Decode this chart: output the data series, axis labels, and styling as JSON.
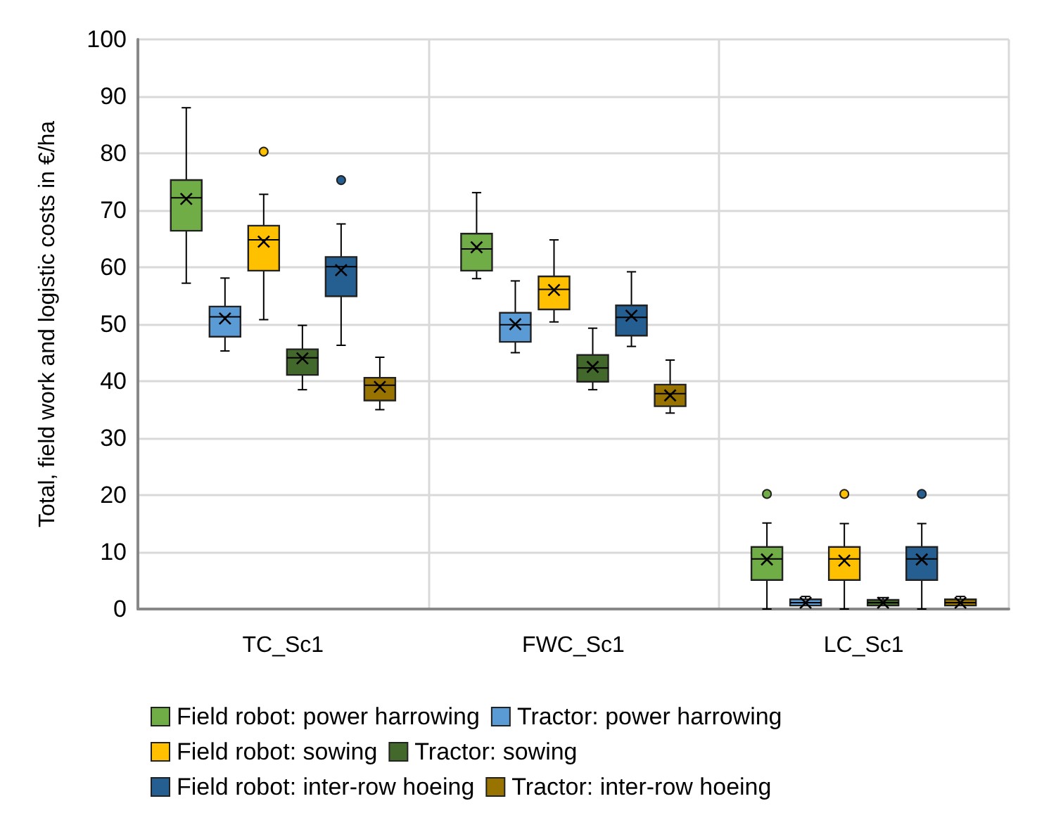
{
  "chart_data": {
    "type": "box",
    "ylabel": "Total, field work and logistic costs in €/ha",
    "categories": [
      "TC_Sc1",
      "FWC_Sc1",
      "LC_Sc1"
    ],
    "ylim": [
      0,
      100
    ],
    "yticks": [
      0,
      10,
      20,
      30,
      40,
      50,
      60,
      70,
      80,
      90,
      100
    ],
    "grid": true,
    "legend": "bottom",
    "marker": "circle",
    "series": [
      {
        "name": "Field robot: power harrowing",
        "color": "#70ad47",
        "boxes": [
          {
            "low": 57.2,
            "q1": 66.4,
            "median": 72.2,
            "q3": 75.3,
            "high": 88,
            "mean": 72
          },
          {
            "low": 58,
            "q1": 59.4,
            "median": 63.2,
            "q3": 65.9,
            "high": 73.1,
            "mean": 63.5
          },
          {
            "low": 0,
            "q1": 5.1,
            "median": 8.8,
            "q3": 10.9,
            "high": 15.1,
            "mean": 8.7,
            "outliers": [
              20.2
            ]
          }
        ]
      },
      {
        "name": "Tractor: power harrowing",
        "color": "#5b9bd5",
        "boxes": [
          {
            "low": 45.3,
            "q1": 47.8,
            "median": 51.3,
            "q3": 53.1,
            "high": 58.1,
            "mean": 51
          },
          {
            "low": 45,
            "q1": 46.9,
            "median": 49.9,
            "q3": 52,
            "high": 57.6,
            "mean": 50
          },
          {
            "low": 0.6,
            "q1": 0.6,
            "median": 1.1,
            "q3": 1.7,
            "high": 2.2,
            "mean": 1.1
          }
        ]
      },
      {
        "name": "Field robot: sowing",
        "color": "#ffc000",
        "boxes": [
          {
            "low": 50.8,
            "q1": 59.4,
            "median": 64.8,
            "q3": 67.3,
            "high": 72.8,
            "mean": 64.5,
            "outliers": [
              80.3
            ]
          },
          {
            "low": 50.4,
            "q1": 52.6,
            "median": 56.1,
            "q3": 58.4,
            "high": 64.8,
            "mean": 56
          },
          {
            "low": 0,
            "q1": 5.1,
            "median": 8.8,
            "q3": 10.9,
            "high": 15,
            "mean": 8.5,
            "outliers": [
              20.2
            ]
          }
        ]
      },
      {
        "name": "Tractor: sowing",
        "color": "#43682b",
        "boxes": [
          {
            "low": 38.5,
            "q1": 41.1,
            "median": 44.1,
            "q3": 45.6,
            "high": 49.8,
            "mean": 44
          },
          {
            "low": 38.5,
            "q1": 39.9,
            "median": 42.3,
            "q3": 44.6,
            "high": 49.3,
            "mean": 42.5
          },
          {
            "low": 0.6,
            "q1": 0.6,
            "median": 1.1,
            "q3": 1.6,
            "high": 2,
            "mean": 1.1
          }
        ]
      },
      {
        "name": "Field robot: inter-row hoeing",
        "color": "#255e91",
        "boxes": [
          {
            "low": 46.3,
            "q1": 54.9,
            "median": 60.1,
            "q3": 61.8,
            "high": 67.6,
            "mean": 59.5,
            "outliers": [
              75.3
            ]
          },
          {
            "low": 46.1,
            "q1": 48,
            "median": 51.2,
            "q3": 53.3,
            "high": 59.2,
            "mean": 51.5
          },
          {
            "low": 0,
            "q1": 5.1,
            "median": 8.8,
            "q3": 10.9,
            "high": 15,
            "mean": 8.7,
            "outliers": [
              20.2
            ]
          }
        ]
      },
      {
        "name": "Tractor: inter-row hoeing",
        "color": "#997300",
        "boxes": [
          {
            "low": 35,
            "q1": 36.6,
            "median": 39.3,
            "q3": 40.6,
            "high": 44.2,
            "mean": 39
          },
          {
            "low": 34.4,
            "q1": 35.6,
            "median": 37.8,
            "q3": 39.4,
            "high": 43.7,
            "mean": 37.5
          },
          {
            "low": 0.6,
            "q1": 0.6,
            "median": 1.1,
            "q3": 1.7,
            "high": 2.2,
            "mean": 1.1
          }
        ]
      }
    ]
  }
}
